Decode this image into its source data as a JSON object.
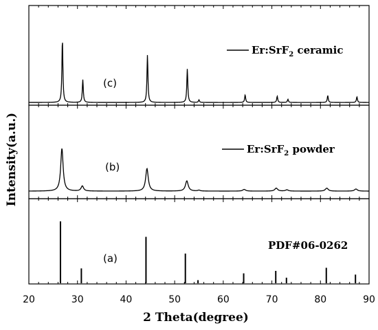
{
  "chart_data": {
    "type": "line",
    "xlabel": "2 Theta(degree)",
    "ylabel": "Intensity(a.u.)",
    "xlim": [
      20,
      90
    ],
    "x_ticks": [
      20,
      30,
      40,
      50,
      60,
      70,
      80,
      90
    ],
    "panels": [
      {
        "id": "c",
        "label": "(c)",
        "legend": {
          "main": "Er:SrF",
          "sub": "2",
          "suffix": " ceramic"
        },
        "style": "peaks",
        "peaks": [
          {
            "x": 26.9,
            "h": 1.0,
            "w": 0.12
          },
          {
            "x": 31.1,
            "h": 0.36,
            "w": 0.12
          },
          {
            "x": 44.4,
            "h": 0.75,
            "w": 0.12
          },
          {
            "x": 52.6,
            "h": 0.53,
            "w": 0.12
          },
          {
            "x": 55.0,
            "h": 0.04,
            "w": 0.12
          },
          {
            "x": 64.5,
            "h": 0.12,
            "w": 0.12
          },
          {
            "x": 71.1,
            "h": 0.1,
            "w": 0.12
          },
          {
            "x": 73.3,
            "h": 0.05,
            "w": 0.12
          },
          {
            "x": 81.5,
            "h": 0.11,
            "w": 0.12
          },
          {
            "x": 87.5,
            "h": 0.09,
            "w": 0.12
          }
        ]
      },
      {
        "id": "b",
        "label": "(b)",
        "legend": {
          "main": "Er:SrF",
          "sub": "2",
          "suffix": " powder"
        },
        "style": "peaks",
        "peaks": [
          {
            "x": 26.8,
            "h": 1.0,
            "w": 0.3
          },
          {
            "x": 31.0,
            "h": 0.12,
            "w": 0.3
          },
          {
            "x": 44.3,
            "h": 0.53,
            "w": 0.32
          },
          {
            "x": 52.5,
            "h": 0.24,
            "w": 0.34
          },
          {
            "x": 55.0,
            "h": 0.02,
            "w": 0.3
          },
          {
            "x": 64.3,
            "h": 0.04,
            "w": 0.35
          },
          {
            "x": 70.9,
            "h": 0.07,
            "w": 0.35
          },
          {
            "x": 73.1,
            "h": 0.03,
            "w": 0.35
          },
          {
            "x": 81.3,
            "h": 0.07,
            "w": 0.35
          },
          {
            "x": 87.3,
            "h": 0.05,
            "w": 0.35
          }
        ]
      },
      {
        "id": "a",
        "label": "(a)",
        "legend": {
          "main": "PDF#06-0262",
          "sub": "",
          "suffix": ""
        },
        "style": "sticks",
        "peaks": [
          {
            "x": 26.5,
            "h": 1.0
          },
          {
            "x": 30.8,
            "h": 0.24
          },
          {
            "x": 44.1,
            "h": 0.75
          },
          {
            "x": 52.2,
            "h": 0.48
          },
          {
            "x": 54.8,
            "h": 0.05
          },
          {
            "x": 64.2,
            "h": 0.16
          },
          {
            "x": 70.8,
            "h": 0.2
          },
          {
            "x": 73.0,
            "h": 0.09
          },
          {
            "x": 81.2,
            "h": 0.25
          },
          {
            "x": 87.2,
            "h": 0.14
          }
        ]
      }
    ]
  }
}
